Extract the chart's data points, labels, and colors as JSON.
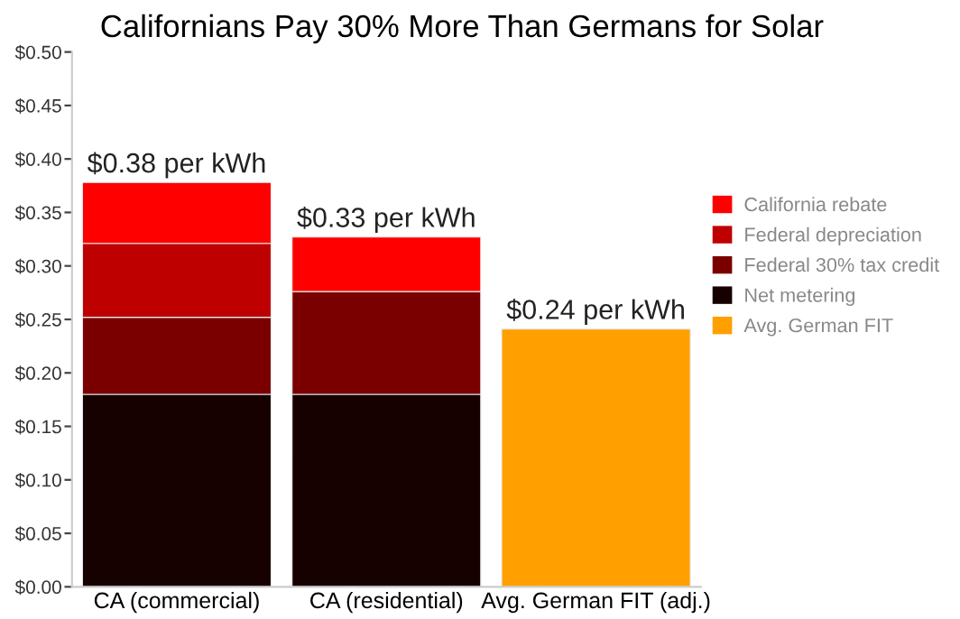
{
  "chart_data": {
    "type": "bar",
    "title": "Californians Pay 30% More Than Germans for Solar",
    "stacked": true,
    "categories": [
      "CA (commercial)",
      "CA (residential)",
      "Avg. German FIT (adj.)"
    ],
    "series": [
      {
        "name": "Net metering",
        "color": "#160000",
        "values": [
          0.18,
          0.18,
          null
        ]
      },
      {
        "name": "Federal 30% tax credit",
        "color": "#7a0000",
        "values": [
          0.072,
          0.096,
          null
        ]
      },
      {
        "name": "Federal depreciation",
        "color": "#bf0000",
        "values": [
          0.069,
          null,
          null
        ]
      },
      {
        "name": "California rebate",
        "color": "#ff0000",
        "values": [
          0.057,
          0.051,
          null
        ]
      },
      {
        "name": "Avg. German FIT",
        "color": "#ffa000",
        "values": [
          null,
          null,
          0.241
        ]
      }
    ],
    "totals": [
      "$0.38 per kWh",
      "$0.33 per kWh",
      "$0.24 per kWh"
    ],
    "ylim": [
      0,
      0.5
    ],
    "yticks": [
      {
        "value": 0,
        "label": "$0.00"
      },
      {
        "value": 0.05,
        "label": "$0.05"
      },
      {
        "value": 0.1,
        "label": "$0.10"
      },
      {
        "value": 0.15,
        "label": "$0.15"
      },
      {
        "value": 0.2,
        "label": "$0.20"
      },
      {
        "value": 0.25,
        "label": "$0.25"
      },
      {
        "value": 0.3,
        "label": "$0.30"
      },
      {
        "value": 0.35,
        "label": "$0.35"
      },
      {
        "value": 0.4,
        "label": "$0.40"
      },
      {
        "value": 0.45,
        "label": "$0.45"
      },
      {
        "value": 0.5,
        "label": "$0.50"
      }
    ],
    "grid": false,
    "legend": "right"
  }
}
